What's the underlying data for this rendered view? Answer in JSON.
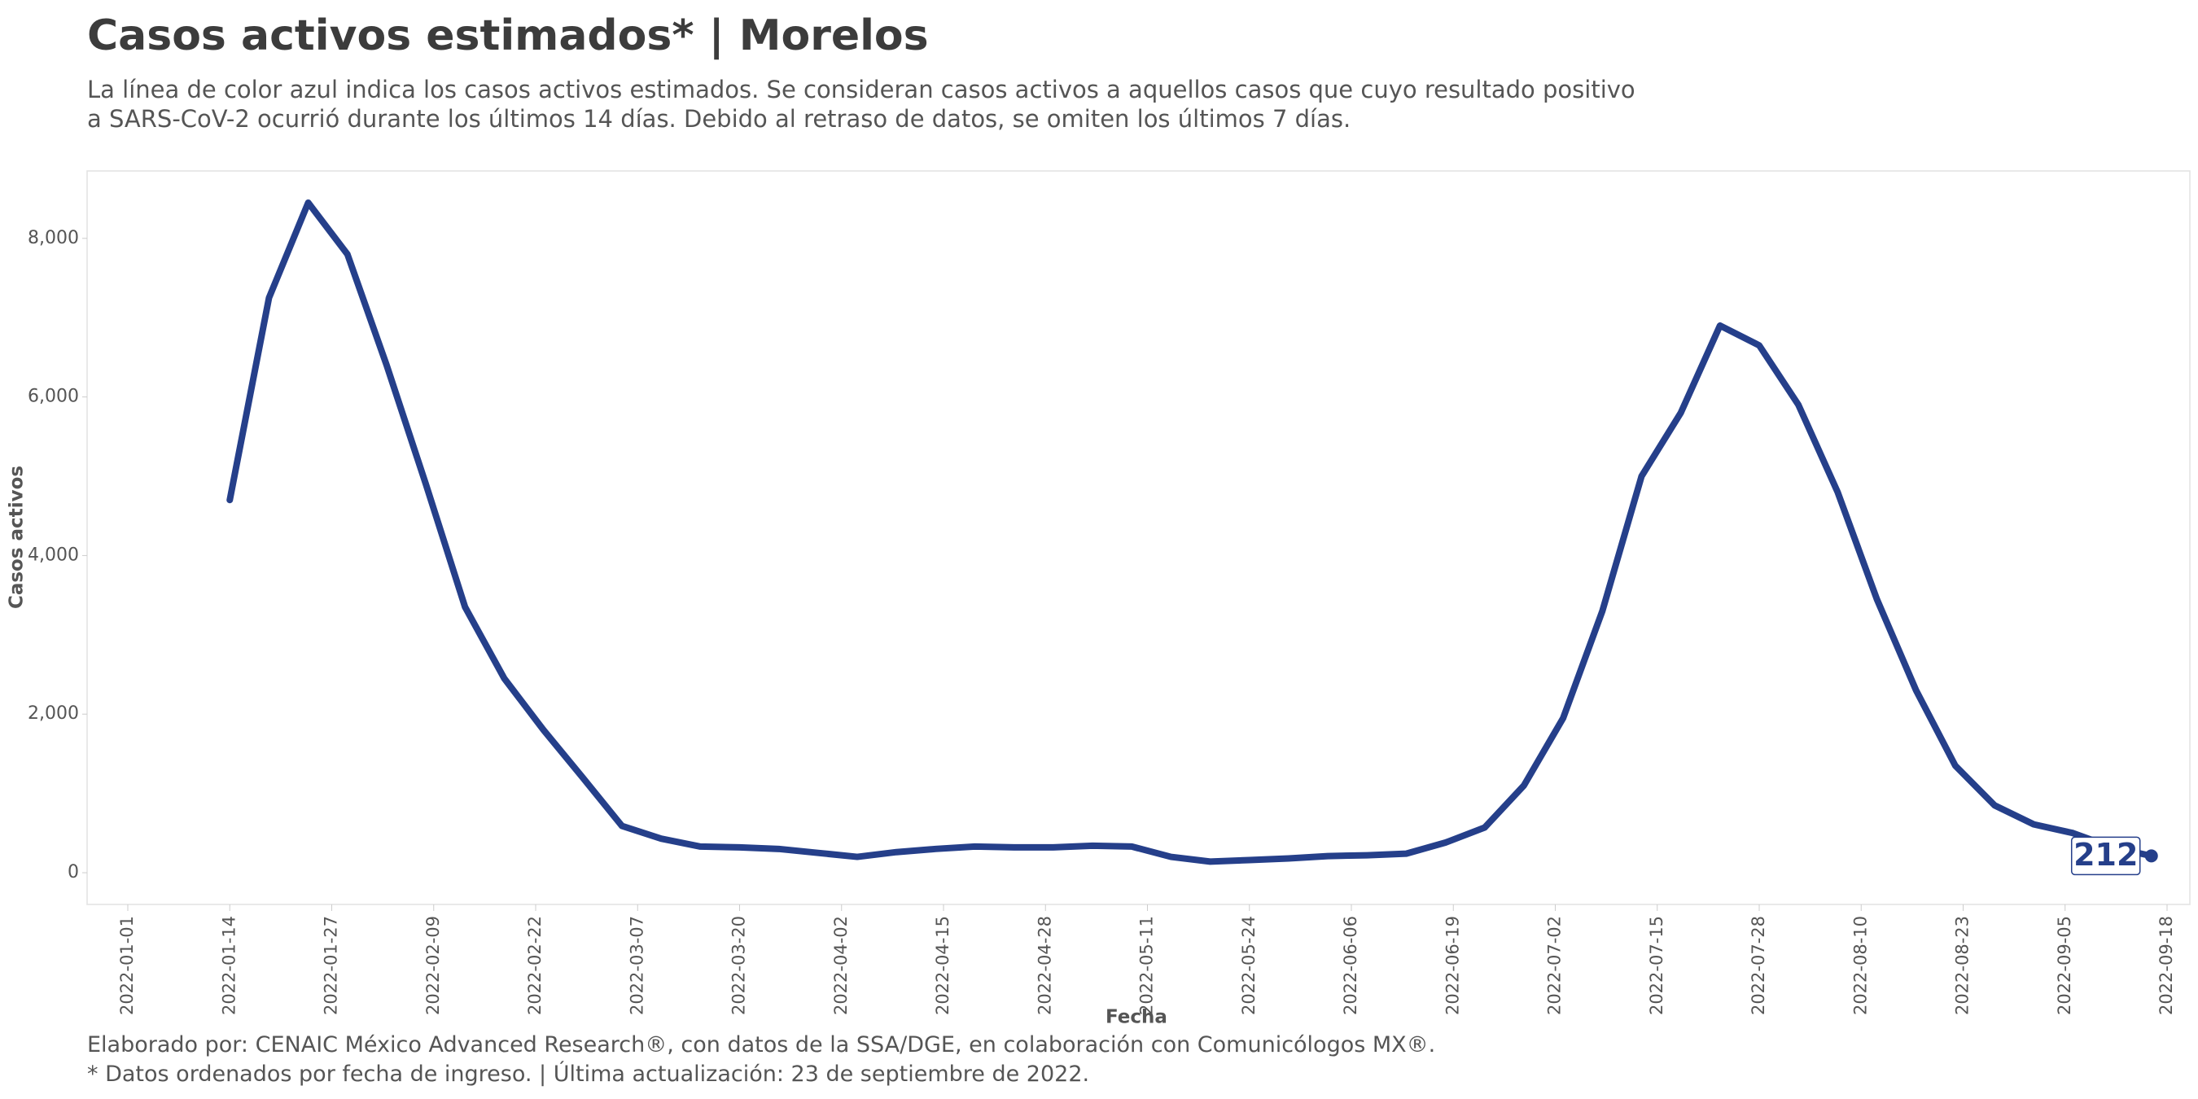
{
  "chart_data": {
    "type": "line",
    "title": "Casos activos estimados* | Morelos",
    "subtitle": "La línea de color azul indica los casos activos estimados. Se consideran casos activos a aquellos casos que cuyo resultado positivo a SARS-CoV-2 ocurrió durante los últimos 14 días. Debido al retraso de datos, se omiten los últimos 7 días.",
    "x_label": "Fecha",
    "y_label": "Casos activos",
    "captions": [
      "Elaborado por: CENAIC México Advanced Research®, con datos de la SSA/DGE, en colaboración con Comunicólogos MX®.",
      "* Datos ordenados por fecha de ingreso. | Última actualización: 23 de septiembre de 2022."
    ],
    "x": [
      "2022-01-14",
      "2022-01-19",
      "2022-01-24",
      "2022-01-29",
      "2022-02-03",
      "2022-02-08",
      "2022-02-13",
      "2022-02-18",
      "2022-02-23",
      "2022-02-28",
      "2022-03-05",
      "2022-03-10",
      "2022-03-15",
      "2022-03-20",
      "2022-03-25",
      "2022-03-30",
      "2022-04-04",
      "2022-04-09",
      "2022-04-14",
      "2022-04-19",
      "2022-04-24",
      "2022-04-29",
      "2022-05-04",
      "2022-05-09",
      "2022-05-14",
      "2022-05-19",
      "2022-05-24",
      "2022-05-29",
      "2022-06-03",
      "2022-06-08",
      "2022-06-13",
      "2022-06-18",
      "2022-06-23",
      "2022-06-28",
      "2022-07-03",
      "2022-07-08",
      "2022-07-13",
      "2022-07-18",
      "2022-07-23",
      "2022-07-28",
      "2022-08-02",
      "2022-08-07",
      "2022-08-12",
      "2022-08-17",
      "2022-08-22",
      "2022-08-27",
      "2022-09-01",
      "2022-09-06",
      "2022-09-11",
      "2022-09-16"
    ],
    "series": [
      {
        "name": "Casos activos",
        "color": "#253f8a",
        "values": [
          4700,
          7250,
          8450,
          7800,
          6400,
          4900,
          3350,
          2450,
          1800,
          1200,
          590,
          430,
          330,
          320,
          300,
          250,
          200,
          260,
          300,
          330,
          320,
          320,
          340,
          330,
          200,
          140,
          160,
          180,
          210,
          220,
          240,
          380,
          570,
          1100,
          1950,
          3300,
          5000,
          5800,
          6900,
          6650,
          5900,
          4800,
          3450,
          2300,
          1350,
          850,
          610,
          500,
          320,
          212
        ]
      }
    ],
    "xlim": [
      "2022-01-01",
      "2022-09-18"
    ],
    "xticks": [
      "2022-01-01",
      "2022-01-14",
      "2022-01-27",
      "2022-02-09",
      "2022-02-22",
      "2022-03-07",
      "2022-03-20",
      "2022-04-02",
      "2022-04-15",
      "2022-04-28",
      "2022-05-11",
      "2022-05-24",
      "2022-06-06",
      "2022-06-19",
      "2022-07-02",
      "2022-07-15",
      "2022-07-28",
      "2022-08-10",
      "2022-08-23",
      "2022-09-05",
      "2022-09-18"
    ],
    "ylim": [
      -400,
      8850
    ],
    "yticks": [
      0,
      {
        "value": 2000,
        "label": "2,000"
      },
      {
        "value": 4000,
        "label": "4,000"
      },
      {
        "value": 6000,
        "label": "6,000"
      },
      {
        "value": 8000,
        "label": "8,000"
      }
    ],
    "grid": false
  }
}
